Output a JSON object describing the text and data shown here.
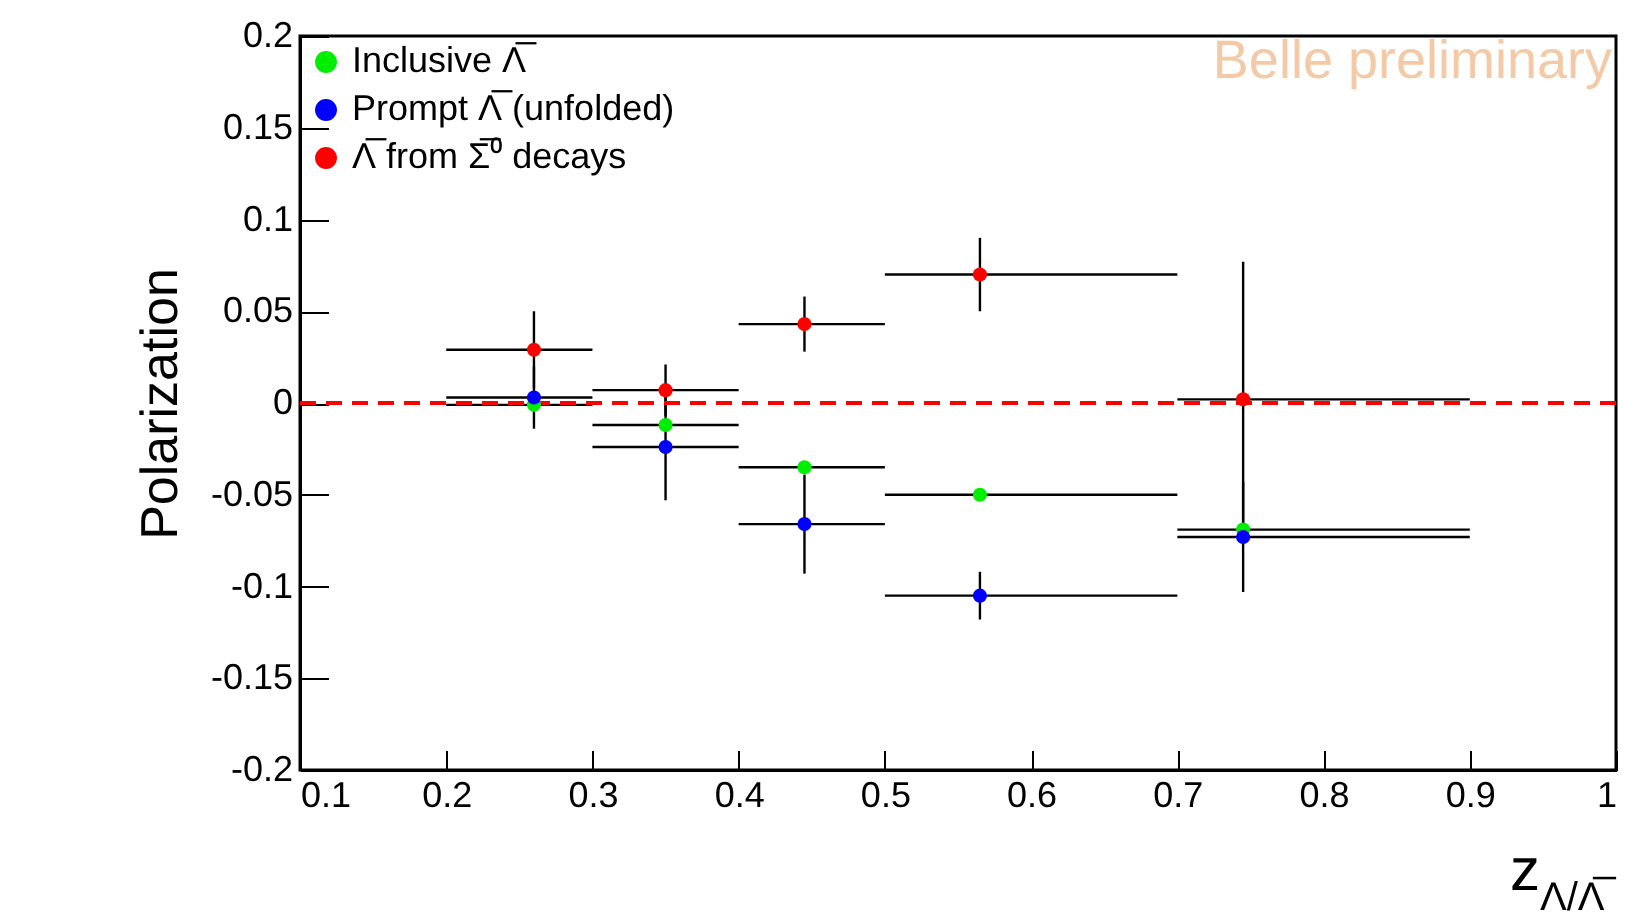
{
  "chart_data": {
    "type": "scatter",
    "ylabel": "Polarization",
    "xlabel": "z$_{Λ/Λ̅}$",
    "xlim": [
      0.1,
      1
    ],
    "xticks": [
      0.1,
      0.2,
      0.3,
      0.4,
      0.5,
      0.6,
      0.7,
      0.8,
      0.9,
      1
    ],
    "ylim": [
      -0.2,
      0.2
    ],
    "yticks": [
      -0.2,
      -0.15,
      -0.1,
      -0.05,
      0,
      0.05,
      0.1,
      0.15,
      0.2
    ],
    "marker": "circle",
    "legend": "top left",
    "grid": false,
    "ref_lines": [
      {
        "axis": "y",
        "value": 0,
        "color": "#ff0000",
        "line_style": "dashed"
      }
    ],
    "annotations": [
      "Belle preliminary"
    ],
    "series": [
      {
        "name": "Inclusive Λ̅",
        "color": "#00ee00",
        "x": [
          0.26,
          0.35,
          0.445,
          0.565,
          0.745
        ],
        "values": [
          -0.001,
          -0.012,
          -0.035,
          -0.05,
          -0.069
        ],
        "xerrors": [
          [
            0.2,
            0.3
          ],
          [
            0.3,
            0.4
          ],
          [
            0.4,
            0.5
          ],
          [
            0.5,
            0.7
          ],
          [
            0.7,
            0.9
          ]
        ]
      },
      {
        "name": "Prompt Λ̅ (unfolded)",
        "color": "#0000ff",
        "x": [
          0.26,
          0.35,
          0.445,
          0.565,
          0.745
        ],
        "values": [
          0.003,
          -0.024,
          -0.066,
          -0.105,
          -0.073
        ],
        "errors": [
          0.017,
          0.029,
          0.027,
          0.013,
          0.03
        ],
        "xerrors": [
          [
            0.2,
            0.3
          ],
          [
            0.3,
            0.4
          ],
          [
            0.4,
            0.5
          ],
          [
            0.5,
            0.7
          ],
          [
            0.7,
            0.9
          ]
        ]
      },
      {
        "name": "Λ̅ from Σ̅⁰ decays",
        "color": "#ff0000",
        "x": [
          0.26,
          0.35,
          0.445,
          0.565,
          0.745
        ],
        "values": [
          0.029,
          0.007,
          0.043,
          0.07,
          0.002
        ],
        "errors": [
          0.021,
          0.014,
          0.015,
          0.02,
          0.075
        ],
        "xerrors": [
          [
            0.2,
            0.3
          ],
          [
            0.3,
            0.4
          ],
          [
            0.4,
            0.5
          ],
          [
            0.5,
            0.7
          ],
          [
            0.7,
            0.9
          ]
        ]
      }
    ]
  }
}
